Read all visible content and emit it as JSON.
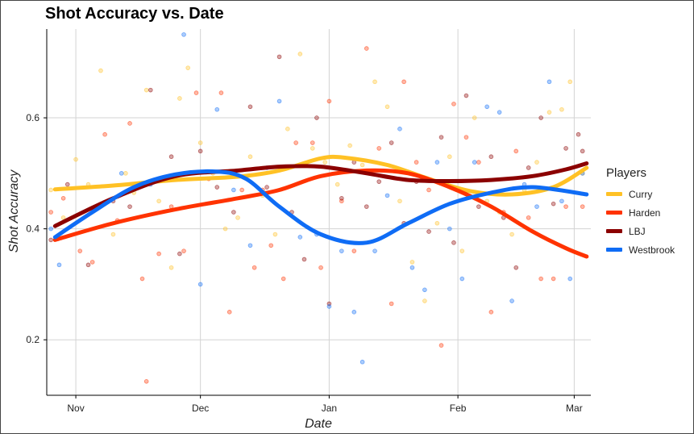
{
  "chart_data": {
    "type": "scatter",
    "title": "Shot Accuracy vs. Date",
    "xlabel": "Date",
    "ylabel": "Shot Accuracy",
    "x_ticks": [
      {
        "label": "Nov",
        "date": "2016-11-01"
      },
      {
        "label": "Dec",
        "date": "2016-12-01"
      },
      {
        "label": "Jan",
        "date": "2017-01-01"
      },
      {
        "label": "Feb",
        "date": "2017-02-01"
      },
      {
        "label": "Mar",
        "date": "2017-03-01"
      }
    ],
    "y_ticks": [
      0.2,
      0.4,
      0.6
    ],
    "xlim": [
      "2016-10-25",
      "2017-03-05"
    ],
    "ylim": [
      0.1,
      0.76
    ],
    "grid": true,
    "legend_title": "Players",
    "legend_position": "right",
    "series": [
      {
        "name": "Curry",
        "color": "#FFC125",
        "points": [
          [
            "2016-10-26",
            0.47
          ],
          [
            "2016-10-29",
            0.42
          ],
          [
            "2016-11-01",
            0.525
          ],
          [
            "2016-11-04",
            0.48
          ],
          [
            "2016-11-07",
            0.685
          ],
          [
            "2016-11-10",
            0.39
          ],
          [
            "2016-11-13",
            0.5
          ],
          [
            "2016-11-15",
            0.465
          ],
          [
            "2016-11-18",
            0.65
          ],
          [
            "2016-11-21",
            0.45
          ],
          [
            "2016-11-24",
            0.33
          ],
          [
            "2016-11-26",
            0.635
          ],
          [
            "2016-11-28",
            0.69
          ],
          [
            "2016-12-01",
            0.555
          ],
          [
            "2016-12-04",
            0.5
          ],
          [
            "2016-12-07",
            0.4
          ],
          [
            "2016-12-10",
            0.42
          ],
          [
            "2016-12-13",
            0.53
          ],
          [
            "2016-12-16",
            0.46
          ],
          [
            "2016-12-19",
            0.39
          ],
          [
            "2016-12-22",
            0.58
          ],
          [
            "2016-12-25",
            0.715
          ],
          [
            "2016-12-28",
            0.545
          ],
          [
            "2016-12-31",
            0.52
          ],
          [
            "2017-01-03",
            0.48
          ],
          [
            "2017-01-06",
            0.55
          ],
          [
            "2017-01-09",
            0.515
          ],
          [
            "2017-01-12",
            0.665
          ],
          [
            "2017-01-15",
            0.62
          ],
          [
            "2017-01-18",
            0.45
          ],
          [
            "2017-01-21",
            0.34
          ],
          [
            "2017-01-24",
            0.27
          ],
          [
            "2017-01-27",
            0.41
          ],
          [
            "2017-01-30",
            0.53
          ],
          [
            "2017-02-02",
            0.36
          ],
          [
            "2017-02-05",
            0.6
          ],
          [
            "2017-02-08",
            0.45
          ],
          [
            "2017-02-11",
            0.43
          ],
          [
            "2017-02-14",
            0.39
          ],
          [
            "2017-02-17",
            0.47
          ],
          [
            "2017-02-20",
            0.52
          ],
          [
            "2017-02-23",
            0.61
          ],
          [
            "2017-02-26",
            0.615
          ],
          [
            "2017-02-28",
            0.665
          ],
          [
            "2017-03-03",
            0.5
          ]
        ]
      },
      {
        "name": "Harden",
        "color": "#FF3300",
        "points": [
          [
            "2016-10-26",
            0.43
          ],
          [
            "2016-10-29",
            0.455
          ],
          [
            "2016-11-02",
            0.36
          ],
          [
            "2016-11-05",
            0.34
          ],
          [
            "2016-11-08",
            0.57
          ],
          [
            "2016-11-11",
            0.415
          ],
          [
            "2016-11-14",
            0.59
          ],
          [
            "2016-11-17",
            0.31
          ],
          [
            "2016-11-18",
            0.125
          ],
          [
            "2016-11-21",
            0.355
          ],
          [
            "2016-11-24",
            0.44
          ],
          [
            "2016-11-27",
            0.36
          ],
          [
            "2016-11-30",
            0.645
          ],
          [
            "2016-12-03",
            0.49
          ],
          [
            "2016-12-06",
            0.645
          ],
          [
            "2016-12-08",
            0.25
          ],
          [
            "2016-12-11",
            0.47
          ],
          [
            "2016-12-14",
            0.33
          ],
          [
            "2016-12-16",
            0.47
          ],
          [
            "2016-12-18",
            0.37
          ],
          [
            "2016-12-21",
            0.31
          ],
          [
            "2016-12-24",
            0.555
          ],
          [
            "2016-12-28",
            0.555
          ],
          [
            "2016-12-30",
            0.33
          ],
          [
            "2017-01-01",
            0.63
          ],
          [
            "2017-01-04",
            0.45
          ],
          [
            "2017-01-07",
            0.36
          ],
          [
            "2017-01-10",
            0.725
          ],
          [
            "2017-01-13",
            0.545
          ],
          [
            "2017-01-16",
            0.265
          ],
          [
            "2017-01-19",
            0.665
          ],
          [
            "2017-01-22",
            0.52
          ],
          [
            "2017-01-25",
            0.47
          ],
          [
            "2017-01-28",
            0.19
          ],
          [
            "2017-01-31",
            0.625
          ],
          [
            "2017-02-03",
            0.565
          ],
          [
            "2017-02-06",
            0.52
          ],
          [
            "2017-02-09",
            0.25
          ],
          [
            "2017-02-12",
            0.43
          ],
          [
            "2017-02-15",
            0.54
          ],
          [
            "2017-02-18",
            0.42
          ],
          [
            "2017-02-21",
            0.31
          ],
          [
            "2017-02-24",
            0.31
          ],
          [
            "2017-02-27",
            0.44
          ],
          [
            "2017-03-03",
            0.44
          ]
        ]
      },
      {
        "name": "LBJ",
        "color": "#8B0000",
        "points": [
          [
            "2016-10-26",
            0.38
          ],
          [
            "2016-10-30",
            0.48
          ],
          [
            "2016-11-04",
            0.335
          ],
          [
            "2016-11-10",
            0.45
          ],
          [
            "2016-11-14",
            0.44
          ],
          [
            "2016-11-19",
            0.65
          ],
          [
            "2016-11-24",
            0.53
          ],
          [
            "2016-11-26",
            0.355
          ],
          [
            "2016-12-01",
            0.54
          ],
          [
            "2016-12-05",
            0.475
          ],
          [
            "2016-12-09",
            0.43
          ],
          [
            "2016-12-13",
            0.62
          ],
          [
            "2016-12-17",
            0.475
          ],
          [
            "2016-12-20",
            0.71
          ],
          [
            "2016-12-23",
            0.43
          ],
          [
            "2016-12-26",
            0.345
          ],
          [
            "2016-12-29",
            0.6
          ],
          [
            "2017-01-01",
            0.265
          ],
          [
            "2017-01-04",
            0.455
          ],
          [
            "2017-01-07",
            0.52
          ],
          [
            "2017-01-10",
            0.44
          ],
          [
            "2017-01-13",
            0.485
          ],
          [
            "2017-01-16",
            0.555
          ],
          [
            "2017-01-19",
            0.41
          ],
          [
            "2017-01-22",
            0.485
          ],
          [
            "2017-01-25",
            0.395
          ],
          [
            "2017-01-28",
            0.565
          ],
          [
            "2017-01-31",
            0.375
          ],
          [
            "2017-02-03",
            0.64
          ],
          [
            "2017-02-06",
            0.44
          ],
          [
            "2017-02-09",
            0.53
          ],
          [
            "2017-02-12",
            0.42
          ],
          [
            "2017-02-15",
            0.33
          ],
          [
            "2017-02-18",
            0.51
          ],
          [
            "2017-02-21",
            0.6
          ],
          [
            "2017-02-24",
            0.445
          ],
          [
            "2017-02-27",
            0.545
          ],
          [
            "2017-03-02",
            0.57
          ],
          [
            "2017-03-03",
            0.54
          ]
        ]
      },
      {
        "name": "Westbrook",
        "color": "#0F6CF5",
        "points": [
          [
            "2016-10-26",
            0.4
          ],
          [
            "2016-10-28",
            0.335
          ],
          [
            "2016-11-12",
            0.5
          ],
          [
            "2016-11-19",
            0.48
          ],
          [
            "2016-11-27",
            0.75
          ],
          [
            "2016-12-01",
            0.3
          ],
          [
            "2016-12-05",
            0.615
          ],
          [
            "2016-12-09",
            0.47
          ],
          [
            "2016-12-13",
            0.37
          ],
          [
            "2016-12-17",
            0.51
          ],
          [
            "2016-12-20",
            0.63
          ],
          [
            "2016-12-25",
            0.385
          ],
          [
            "2016-12-29",
            0.39
          ],
          [
            "2017-01-01",
            0.26
          ],
          [
            "2017-01-04",
            0.36
          ],
          [
            "2017-01-07",
            0.25
          ],
          [
            "2017-01-09",
            0.16
          ],
          [
            "2017-01-12",
            0.36
          ],
          [
            "2017-01-15",
            0.46
          ],
          [
            "2017-01-18",
            0.58
          ],
          [
            "2017-01-21",
            0.33
          ],
          [
            "2017-01-24",
            0.29
          ],
          [
            "2017-01-27",
            0.52
          ],
          [
            "2017-01-30",
            0.4
          ],
          [
            "2017-02-02",
            0.31
          ],
          [
            "2017-02-05",
            0.52
          ],
          [
            "2017-02-08",
            0.62
          ],
          [
            "2017-02-11",
            0.61
          ],
          [
            "2017-02-14",
            0.27
          ],
          [
            "2017-02-17",
            0.48
          ],
          [
            "2017-02-20",
            0.44
          ],
          [
            "2017-02-23",
            0.665
          ],
          [
            "2017-02-26",
            0.45
          ],
          [
            "2017-02-28",
            0.31
          ],
          [
            "2017-03-03",
            0.5
          ]
        ]
      }
    ],
    "trends": [
      {
        "name": "Curry",
        "color": "#FFC125",
        "points": [
          [
            "2016-10-27",
            0.471
          ],
          [
            "2016-11-10",
            0.478
          ],
          [
            "2016-11-25",
            0.488
          ],
          [
            "2016-12-10",
            0.494
          ],
          [
            "2016-12-20",
            0.505
          ],
          [
            "2016-12-30",
            0.527
          ],
          [
            "2017-01-05",
            0.528
          ],
          [
            "2017-01-15",
            0.515
          ],
          [
            "2017-01-25",
            0.49
          ],
          [
            "2017-02-04",
            0.468
          ],
          [
            "2017-02-14",
            0.462
          ],
          [
            "2017-02-24",
            0.475
          ],
          [
            "2017-03-04",
            0.51
          ]
        ]
      },
      {
        "name": "Harden",
        "color": "#FF3300",
        "points": [
          [
            "2016-10-27",
            0.38
          ],
          [
            "2016-11-10",
            0.41
          ],
          [
            "2016-11-25",
            0.435
          ],
          [
            "2016-12-10",
            0.455
          ],
          [
            "2016-12-20",
            0.47
          ],
          [
            "2016-12-30",
            0.495
          ],
          [
            "2017-01-10",
            0.505
          ],
          [
            "2017-01-20",
            0.5
          ],
          [
            "2017-01-30",
            0.475
          ],
          [
            "2017-02-09",
            0.44
          ],
          [
            "2017-02-19",
            0.395
          ],
          [
            "2017-02-27",
            0.365
          ],
          [
            "2017-03-04",
            0.35
          ]
        ]
      },
      {
        "name": "LBJ",
        "color": "#8B0000",
        "points": [
          [
            "2016-10-27",
            0.405
          ],
          [
            "2016-11-10",
            0.455
          ],
          [
            "2016-11-25",
            0.495
          ],
          [
            "2016-12-10",
            0.505
          ],
          [
            "2016-12-20",
            0.512
          ],
          [
            "2016-12-30",
            0.512
          ],
          [
            "2017-01-10",
            0.5
          ],
          [
            "2017-01-20",
            0.488
          ],
          [
            "2017-01-30",
            0.486
          ],
          [
            "2017-02-09",
            0.488
          ],
          [
            "2017-02-19",
            0.495
          ],
          [
            "2017-02-27",
            0.507
          ],
          [
            "2017-03-04",
            0.518
          ]
        ]
      },
      {
        "name": "Westbrook",
        "color": "#0F6CF5",
        "points": [
          [
            "2016-10-27",
            0.385
          ],
          [
            "2016-11-05",
            0.43
          ],
          [
            "2016-11-15",
            0.475
          ],
          [
            "2016-11-25",
            0.498
          ],
          [
            "2016-12-05",
            0.503
          ],
          [
            "2016-12-12",
            0.49
          ],
          [
            "2016-12-20",
            0.44
          ],
          [
            "2016-12-30",
            0.39
          ],
          [
            "2017-01-10",
            0.375
          ],
          [
            "2017-01-20",
            0.41
          ],
          [
            "2017-01-30",
            0.445
          ],
          [
            "2017-02-09",
            0.465
          ],
          [
            "2017-02-19",
            0.475
          ],
          [
            "2017-03-04",
            0.462
          ]
        ]
      }
    ]
  }
}
